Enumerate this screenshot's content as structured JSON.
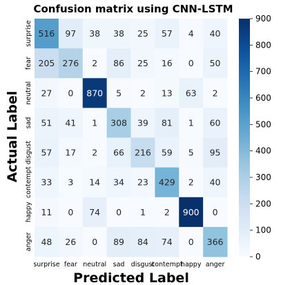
{
  "chart_data": {
    "type": "heatmap",
    "title": "Confusion matrix using CNN-LSTM",
    "xlabel": "Predicted Label",
    "ylabel": "Actual Label",
    "x_categories": [
      "surprise",
      "fear",
      "neutral",
      "sad",
      "disgust",
      "contempt",
      "happy",
      "anger"
    ],
    "y_categories": [
      "surprise",
      "fear",
      "neutral",
      "sad",
      "disgust",
      "contempt",
      "happy",
      "anger"
    ],
    "values": [
      [
        516,
        97,
        38,
        38,
        25,
        57,
        4,
        40
      ],
      [
        205,
        276,
        2,
        86,
        25,
        16,
        0,
        50
      ],
      [
        27,
        0,
        870,
        5,
        2,
        13,
        63,
        2
      ],
      [
        51,
        41,
        1,
        308,
        39,
        81,
        1,
        60
      ],
      [
        57,
        17,
        2,
        66,
        216,
        59,
        5,
        95
      ],
      [
        33,
        3,
        14,
        34,
        23,
        429,
        2,
        40
      ],
      [
        11,
        0,
        74,
        0,
        1,
        2,
        900,
        0
      ],
      [
        48,
        26,
        0,
        89,
        84,
        74,
        0,
        366
      ]
    ],
    "colormap": "Blues",
    "vmin": 0,
    "vmax": 900,
    "colorbar_ticks": [
      0,
      100,
      200,
      300,
      400,
      500,
      600,
      700,
      800,
      900
    ]
  }
}
